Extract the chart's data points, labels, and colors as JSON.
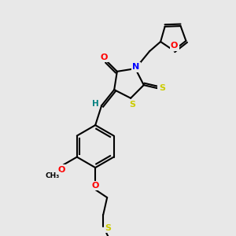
{
  "background_color": "#e8e8e8",
  "bond_color": "#000000",
  "atom_colors": {
    "O": "#ff0000",
    "N": "#0000ff",
    "S": "#cccc00",
    "C": "#000000",
    "H": "#008080"
  },
  "figsize": [
    3.0,
    3.0
  ],
  "dpi": 100
}
